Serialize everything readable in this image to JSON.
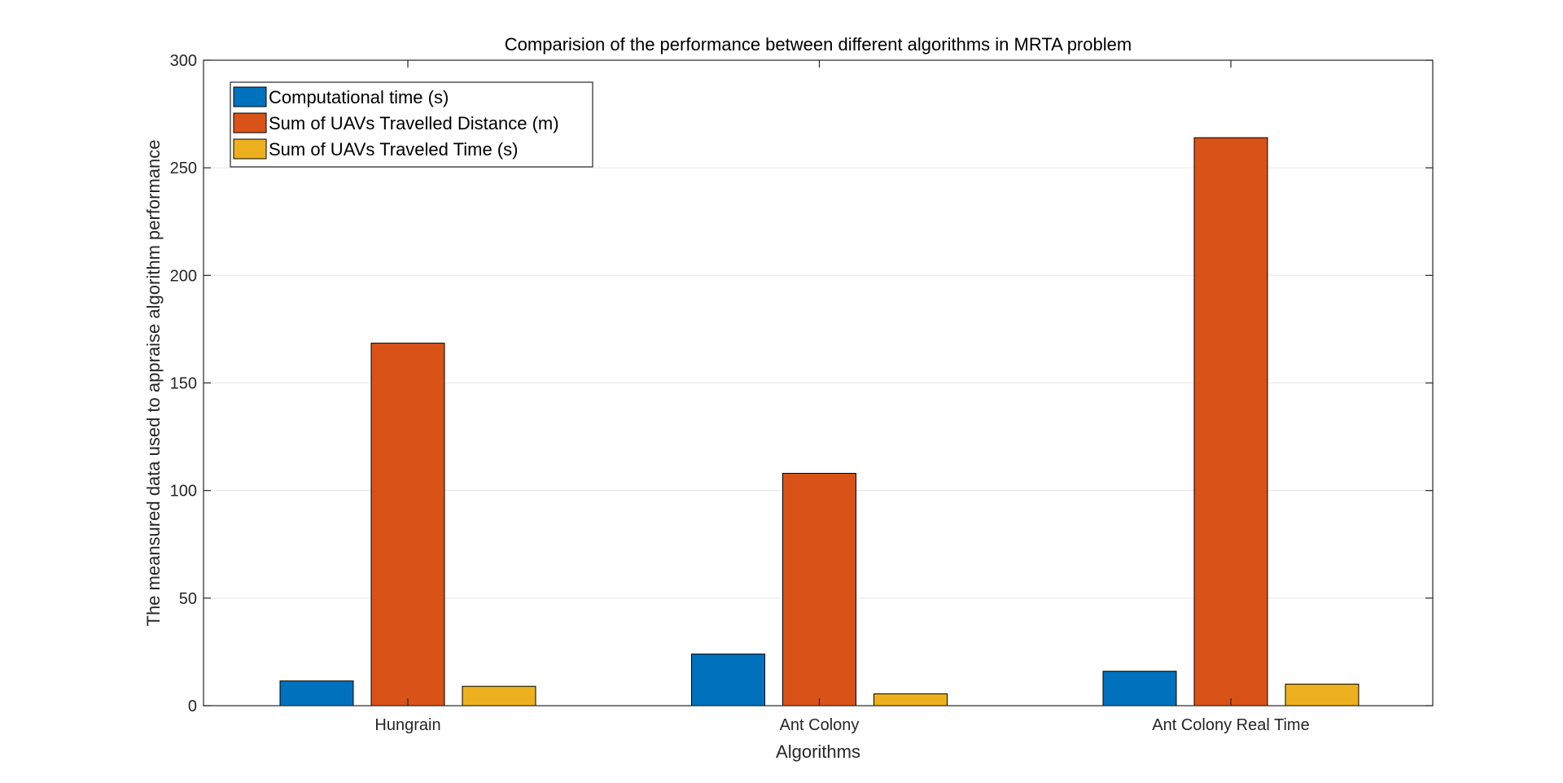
{
  "chart_data": {
    "type": "bar",
    "title": "Comparision of the performance between different algorithms in MRTA problem",
    "xlabel": "Algorithms",
    "ylabel": "The meansured data used to appraise algorithm performance",
    "categories": [
      "Hungrain",
      "Ant Colony",
      "Ant Colony Real Time"
    ],
    "series": [
      {
        "name": "Computational time (s)",
        "color": "#0072BD",
        "values": [
          11.5,
          24,
          16
        ]
      },
      {
        "name": "Sum of UAVs Travelled Distance (m)",
        "color": "#D95319",
        "values": [
          168.5,
          108,
          264
        ]
      },
      {
        "name": "Sum of UAVs Traveled Time (s)",
        "color": "#EDB120",
        "values": [
          9,
          5.5,
          10
        ]
      }
    ],
    "ylim": [
      0,
      300
    ],
    "yticks": [
      "0",
      "50",
      "100",
      "150",
      "200",
      "250",
      "300"
    ],
    "grid": "horizontal",
    "legend_position": "top-left"
  }
}
